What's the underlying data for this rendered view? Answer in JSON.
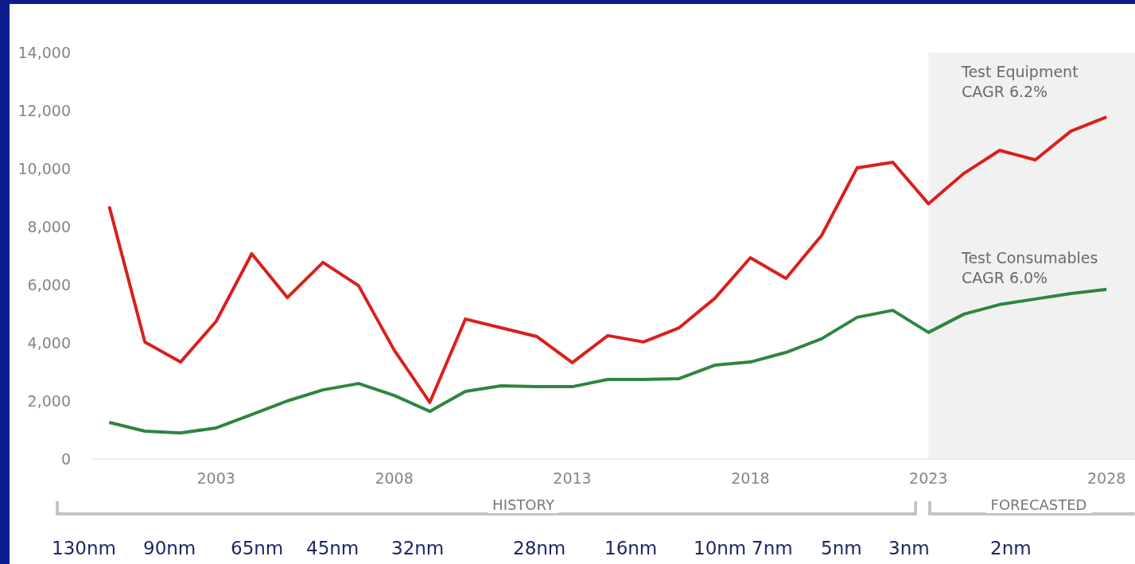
{
  "chart_data": {
    "type": "line",
    "x": [
      2000,
      2001,
      2002,
      2003,
      2004,
      2005,
      2006,
      2007,
      2008,
      2009,
      2010,
      2011,
      2012,
      2013,
      2014,
      2015,
      2016,
      2017,
      2018,
      2019,
      2020,
      2021,
      2022,
      2023,
      2024,
      2025,
      2026,
      2027,
      2028
    ],
    "series": [
      {
        "name": "Test Equipment",
        "color": "#d9201c",
        "values": [
          8700,
          4030,
          3340,
          4740,
          7070,
          5560,
          6770,
          5970,
          3750,
          1950,
          4820,
          4520,
          4220,
          3320,
          4250,
          4030,
          4520,
          5530,
          6930,
          6220,
          7700,
          10030,
          10220,
          8790,
          9840,
          10630,
          10300,
          11290,
          11780
        ]
      },
      {
        "name": "Test Consumables",
        "color": "#2e8540",
        "values": [
          1260,
          960,
          900,
          1070,
          1530,
          2000,
          2380,
          2600,
          2190,
          1640,
          2330,
          2520,
          2490,
          2490,
          2740,
          2740,
          2770,
          3230,
          3340,
          3670,
          4140,
          4880,
          5120,
          4360,
          4990,
          5320,
          5510,
          5700,
          5840
        ]
      }
    ],
    "xlim": [
      1999.5,
      2028.8
    ],
    "xticks": [
      2003,
      2008,
      2013,
      2018,
      2023,
      2028
    ],
    "ylim": [
      0,
      14000
    ],
    "yticks": [
      0,
      {
        "value": 2000,
        "label": "2,000"
      },
      {
        "value": 4000,
        "label": "4,000"
      },
      {
        "value": 6000,
        "label": "6,000"
      },
      {
        "value": 8000,
        "label": "8,000"
      },
      {
        "value": 10000,
        "label": "10,000"
      },
      {
        "value": 12000,
        "label": "12,000"
      },
      {
        "value": 14000,
        "label": "14,000"
      }
    ],
    "bands": [
      {
        "axis": "x",
        "from": 2023,
        "to": 2028.8,
        "color": "#f1f1f1"
      }
    ],
    "grid": false,
    "legend": false,
    "marker": "none",
    "line_style": "solid",
    "annotations": [
      "CAGR 6.2%",
      "CAGR 6.0%",
      "HISTORY",
      "FORECASTED",
      "130nm",
      "90nm",
      "65nm",
      "45nm",
      "32nm",
      "28nm",
      "16nm",
      "10nm",
      "7nm",
      "5nm",
      "3nm",
      "2nm"
    ]
  }
}
